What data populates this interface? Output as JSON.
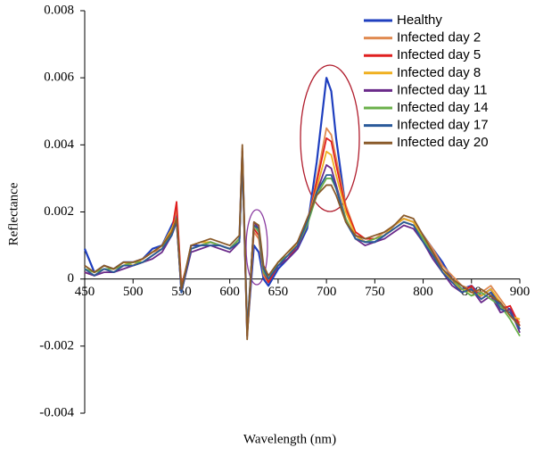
{
  "chart_data": {
    "type": "line",
    "xlabel": "Wavelength  (nm)",
    "ylabel": "Reflectance",
    "xlim": [
      450,
      900
    ],
    "ylim": [
      -0.004,
      0.008
    ],
    "xticks": [
      450,
      500,
      550,
      600,
      650,
      700,
      750,
      800,
      850,
      900
    ],
    "yticks": [
      -0.004,
      -0.002,
      0,
      0.002,
      0.004,
      0.006,
      0.008
    ],
    "legend": "upper right",
    "x": [
      450,
      460,
      470,
      480,
      490,
      500,
      510,
      520,
      530,
      540,
      545,
      550,
      560,
      570,
      580,
      590,
      600,
      610,
      613,
      618,
      625,
      630,
      635,
      640,
      650,
      660,
      670,
      680,
      690,
      700,
      705,
      710,
      720,
      730,
      740,
      750,
      760,
      770,
      780,
      790,
      800,
      810,
      820,
      830,
      840,
      850,
      860,
      870,
      880,
      890,
      900
    ],
    "series": [
      {
        "name": "Healthy",
        "color": "#1f3fbf",
        "values": [
          0.0009,
          0.0002,
          0.0004,
          0.0003,
          0.0005,
          0.0005,
          0.0006,
          0.0009,
          0.001,
          0.0016,
          0.0019,
          -0.0004,
          0.001,
          0.001,
          0.0011,
          0.001,
          0.0009,
          0.0012,
          0.0038,
          -0.0016,
          0.001,
          0.0008,
          0.0,
          -0.0002,
          0.0003,
          0.0006,
          0.0009,
          0.0015,
          0.0035,
          0.006,
          0.0056,
          0.0042,
          0.0021,
          0.0013,
          0.0011,
          0.0011,
          0.0013,
          0.0016,
          0.0018,
          0.0017,
          0.0013,
          0.0009,
          0.0005,
          0.0,
          -0.0003,
          -0.0002,
          -0.0005,
          -0.0003,
          -0.0008,
          -0.0009,
          -0.0015
        ]
      },
      {
        "name": "Infected day 2",
        "color": "#e08a50",
        "values": [
          0.0003,
          0.0001,
          0.0003,
          0.0003,
          0.0004,
          0.0005,
          0.0006,
          0.0008,
          0.0009,
          0.0014,
          0.0021,
          -0.0003,
          0.0009,
          0.001,
          0.0011,
          0.001,
          0.0009,
          0.0012,
          0.0039,
          -0.0017,
          0.0014,
          0.0012,
          0.0001,
          -0.0001,
          0.0004,
          0.0007,
          0.001,
          0.0016,
          0.003,
          0.0045,
          0.0043,
          0.0036,
          0.0022,
          0.0014,
          0.0012,
          0.0012,
          0.0014,
          0.0016,
          0.0018,
          0.0017,
          0.0013,
          0.0009,
          0.0004,
          0.0001,
          -0.0002,
          -0.0003,
          -0.0004,
          -0.0002,
          -0.0006,
          -0.001,
          -0.0013
        ]
      },
      {
        "name": "Infected day 5",
        "color": "#e02020",
        "values": [
          0.0002,
          0.0001,
          0.0003,
          0.0002,
          0.0004,
          0.0004,
          0.0005,
          0.0007,
          0.0009,
          0.0014,
          0.0023,
          -0.0002,
          0.0009,
          0.001,
          0.001,
          0.001,
          0.0009,
          0.0011,
          0.0038,
          -0.0016,
          0.0015,
          0.0013,
          0.0002,
          -0.0001,
          0.0004,
          0.0006,
          0.001,
          0.0016,
          0.0029,
          0.0042,
          0.0041,
          0.0034,
          0.0021,
          0.0014,
          0.0012,
          0.0012,
          0.0013,
          0.0015,
          0.0017,
          0.0016,
          0.0012,
          0.0008,
          0.0003,
          0.0,
          -0.0004,
          -0.0002,
          -0.0006,
          -0.0004,
          -0.0009,
          -0.0008,
          -0.0014
        ]
      },
      {
        "name": "Infected day 8",
        "color": "#f0b020",
        "values": [
          0.0003,
          0.0002,
          0.0004,
          0.0003,
          0.0005,
          0.0004,
          0.0006,
          0.0008,
          0.001,
          0.0015,
          0.0018,
          -0.0003,
          0.001,
          0.0011,
          0.0011,
          0.001,
          0.0009,
          0.0012,
          0.0037,
          -0.0015,
          0.0016,
          0.0014,
          0.0003,
          0.0,
          0.0005,
          0.0007,
          0.0011,
          0.0017,
          0.0027,
          0.0038,
          0.0037,
          0.0031,
          0.002,
          0.0013,
          0.0011,
          0.0012,
          0.0013,
          0.0016,
          0.0018,
          0.0017,
          0.0012,
          0.0007,
          0.0003,
          -0.0001,
          -0.0003,
          -0.0004,
          -0.0005,
          -0.0003,
          -0.0007,
          -0.0011,
          -0.0012
        ]
      },
      {
        "name": "Infected day 11",
        "color": "#6a2a8a",
        "values": [
          0.0002,
          0.0001,
          0.0002,
          0.0002,
          0.0003,
          0.0004,
          0.0005,
          0.0006,
          0.0008,
          0.0013,
          0.0017,
          -0.0004,
          0.0008,
          0.0009,
          0.001,
          0.0009,
          0.0008,
          0.0011,
          0.0036,
          -0.0017,
          0.0017,
          0.0015,
          0.0003,
          0.0,
          0.0004,
          0.0006,
          0.0009,
          0.0016,
          0.0026,
          0.0034,
          0.0033,
          0.0028,
          0.0018,
          0.0012,
          0.001,
          0.0011,
          0.0012,
          0.0014,
          0.0016,
          0.0015,
          0.0011,
          0.0006,
          0.0002,
          -0.0002,
          -0.0004,
          -0.0003,
          -0.0007,
          -0.0005,
          -0.001,
          -0.0009,
          -0.0016
        ]
      },
      {
        "name": "Infected day 14",
        "color": "#6ab04a",
        "values": [
          0.0003,
          0.0002,
          0.0003,
          0.0003,
          0.0004,
          0.0005,
          0.0005,
          0.0007,
          0.0009,
          0.0014,
          0.0018,
          -0.0003,
          0.0009,
          0.001,
          0.0011,
          0.001,
          0.0009,
          0.0012,
          0.0037,
          -0.0016,
          0.0016,
          0.0014,
          0.0002,
          0.0,
          0.0005,
          0.0007,
          0.001,
          0.0016,
          0.0025,
          0.003,
          0.003,
          0.0027,
          0.0018,
          0.0012,
          0.0011,
          0.0012,
          0.0013,
          0.0015,
          0.0017,
          0.0016,
          0.0012,
          0.0007,
          0.0003,
          0.0,
          -0.0003,
          -0.0005,
          -0.0004,
          -0.0006,
          -0.0008,
          -0.0012,
          -0.0017
        ]
      },
      {
        "name": "Infected day 17",
        "color": "#2a5a9a",
        "values": [
          0.0003,
          0.0001,
          0.0003,
          0.0002,
          0.0004,
          0.0004,
          0.0005,
          0.0007,
          0.0009,
          0.0013,
          0.0017,
          -0.0004,
          0.0009,
          0.001,
          0.001,
          0.001,
          0.0009,
          0.0011,
          0.0036,
          -0.0015,
          0.0016,
          0.0015,
          0.0003,
          0.0,
          0.0004,
          0.0007,
          0.001,
          0.0017,
          0.0026,
          0.0031,
          0.0031,
          0.0027,
          0.0017,
          0.0012,
          0.0011,
          0.0011,
          0.0013,
          0.0015,
          0.0017,
          0.0016,
          0.0011,
          0.0007,
          0.0002,
          -0.0001,
          -0.0004,
          -0.0003,
          -0.0006,
          -0.0004,
          -0.0009,
          -0.001,
          -0.0015
        ]
      },
      {
        "name": "Infected day 20",
        "color": "#8a5a2a",
        "values": [
          0.0004,
          0.0002,
          0.0004,
          0.0003,
          0.0005,
          0.0005,
          0.0006,
          0.0008,
          0.001,
          0.0014,
          0.0018,
          -0.0003,
          0.001,
          0.0011,
          0.0012,
          0.0011,
          0.001,
          0.0013,
          0.004,
          -0.0018,
          0.0017,
          0.0016,
          0.0004,
          0.0001,
          0.0005,
          0.0008,
          0.0011,
          0.0018,
          0.0025,
          0.0028,
          0.0028,
          0.0025,
          0.0017,
          0.0013,
          0.0012,
          0.0013,
          0.0014,
          0.0016,
          0.0019,
          0.0018,
          0.0013,
          0.0008,
          0.0003,
          0.0,
          -0.0002,
          -0.0004,
          -0.0003,
          -0.0005,
          -0.0007,
          -0.0011,
          -0.0014
        ]
      }
    ]
  }
}
